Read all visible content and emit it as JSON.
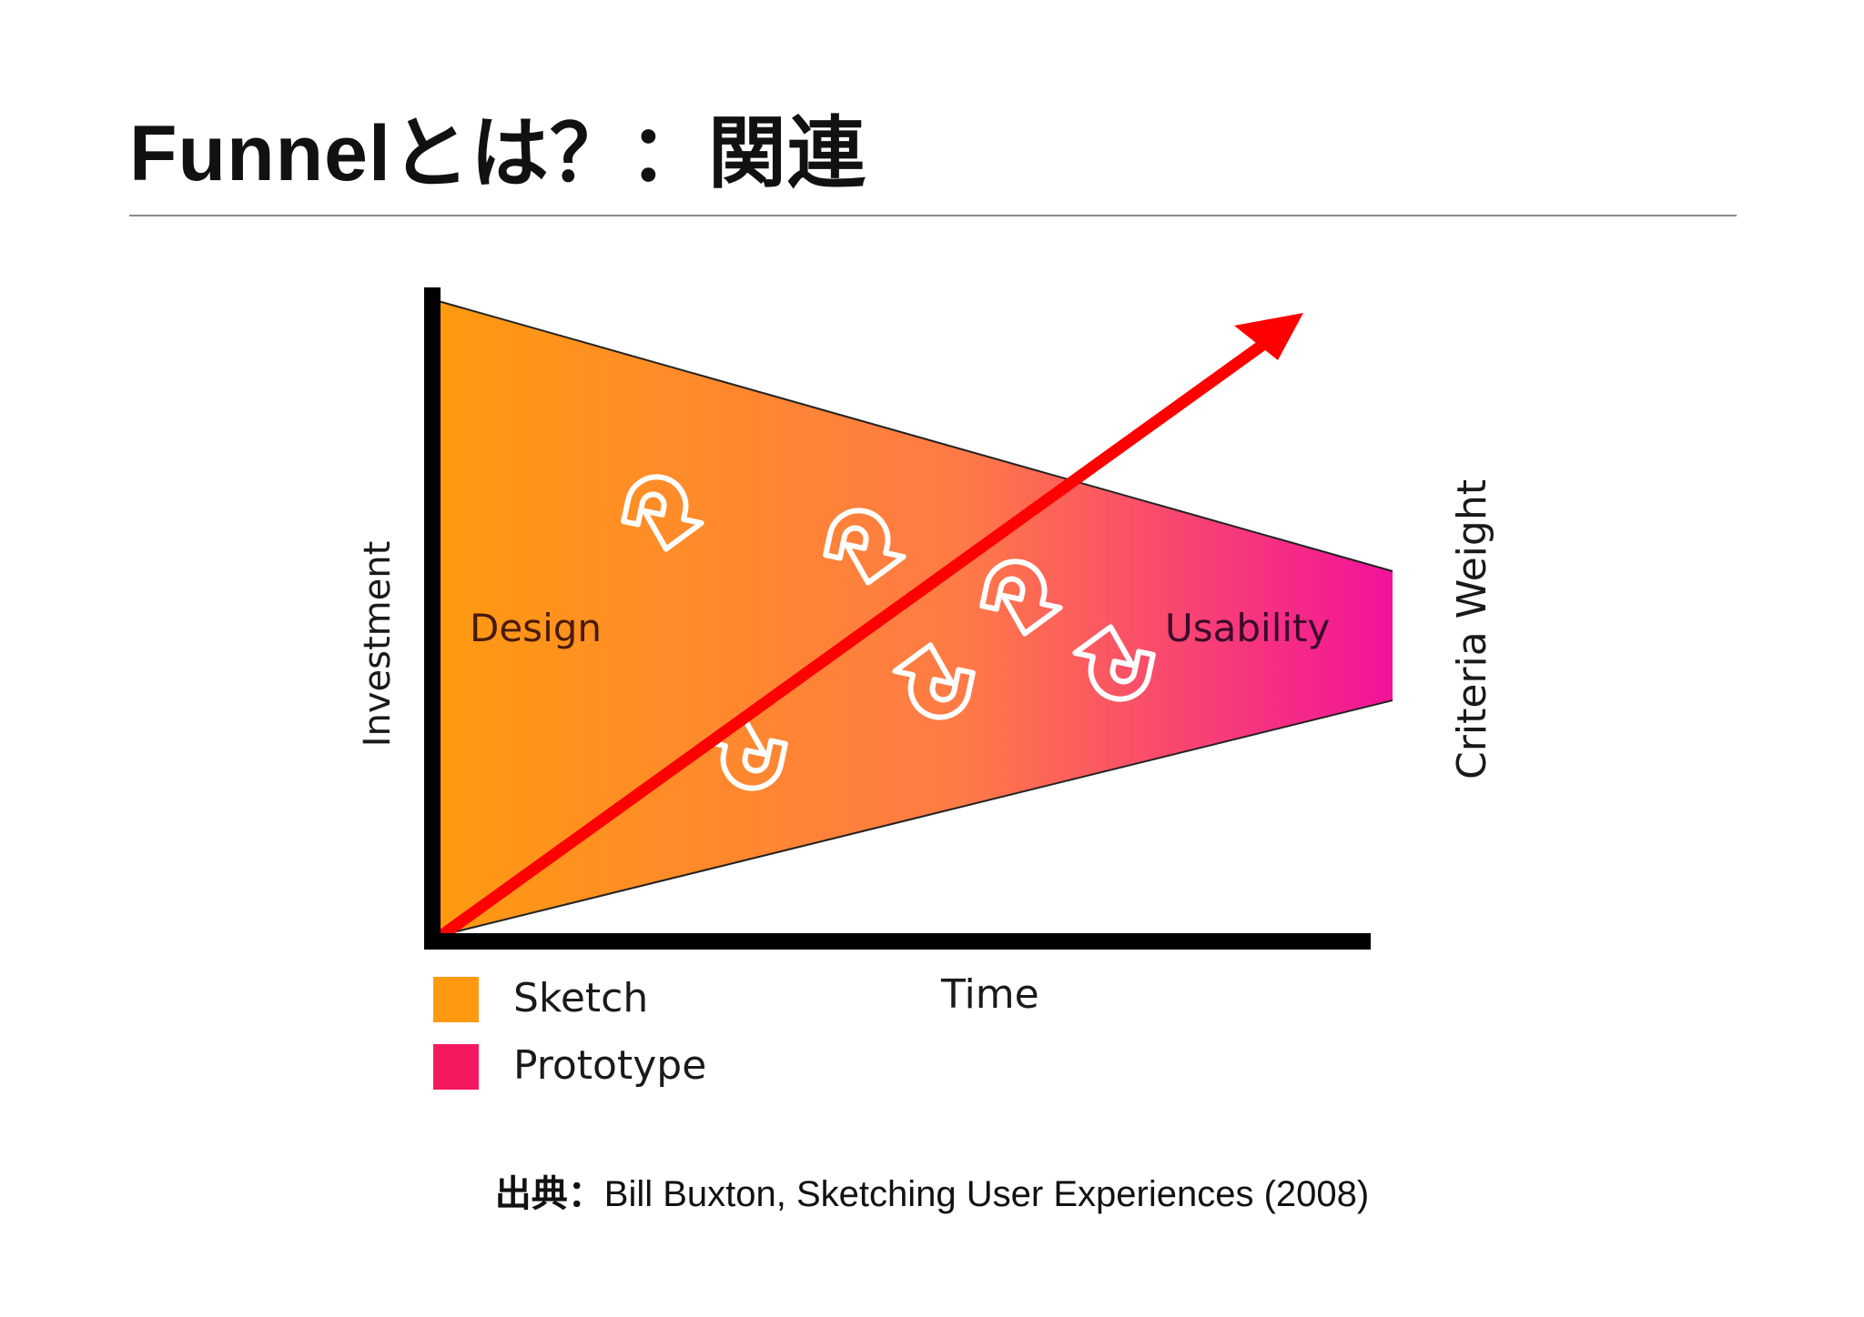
{
  "slide": {
    "title": "Funnelとは？：関連"
  },
  "diagram": {
    "labels": {
      "investment": "Investment",
      "criteria_weight": "Criteria Weight",
      "time": "Time",
      "design": "Design",
      "usability": "Usability"
    },
    "legend": [
      {
        "label": "Sketch",
        "color": "#ff9a10"
      },
      {
        "label": "Prototype",
        "color": "#f5185e"
      }
    ],
    "colors": {
      "funnel_start": "#ff9a10",
      "funnel_mid": "#ff7a46",
      "funnel_end": "#f2129a",
      "trend_arrow": "#ff0000",
      "axes": "#000000",
      "loop_icons": "#ffffff"
    },
    "icons": [
      "loop-arrow-icon"
    ]
  },
  "source": {
    "label": "出典：",
    "text": "Bill Buxton, Sketching User Experiences (2008)"
  }
}
